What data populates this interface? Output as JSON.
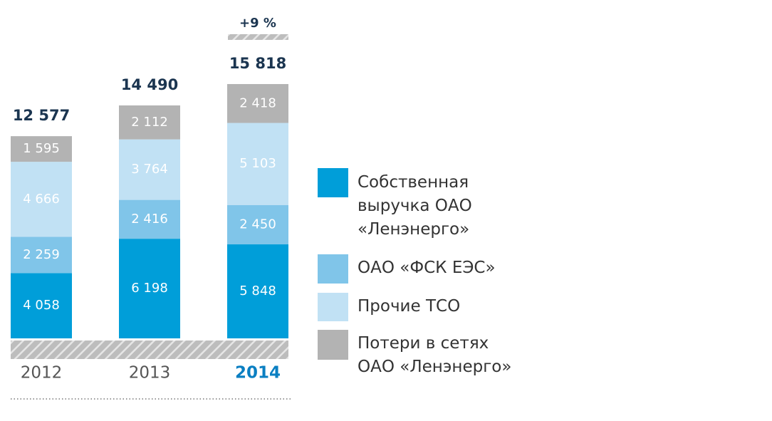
{
  "chart_data": {
    "type": "stacked-bar",
    "categories": [
      "2012",
      "2013",
      "2014"
    ],
    "series": [
      {
        "name": "Собственная выручка ОАО «Ленэнерго»",
        "color": "#009ed9",
        "values": [
          4058,
          6198,
          5848
        ],
        "value_labels": [
          "4 058",
          "6 198",
          "5 848"
        ]
      },
      {
        "name": "ОАО «ФСК ЕЭС»",
        "color": "#80c5e9",
        "values": [
          2259,
          2416,
          2450
        ],
        "value_labels": [
          "2 259",
          "2 416",
          "2 450"
        ]
      },
      {
        "name": "Прочие ТСО",
        "color": "#c1e1f4",
        "values": [
          4666,
          3764,
          5103
        ],
        "value_labels": [
          "4 666",
          "3 764",
          "5 103"
        ]
      },
      {
        "name": "Потери в сетях ОАО «Ленэнерго»",
        "color": "#b3b3b3",
        "values": [
          1595,
          2112,
          2418
        ],
        "value_labels": [
          "1 595",
          "2 112",
          "2 418"
        ]
      }
    ],
    "totals": [
      12577,
      14490,
      15818
    ],
    "total_labels": [
      "12 577",
      "14 490",
      "15 818"
    ],
    "annotation": "+9 %"
  }
}
